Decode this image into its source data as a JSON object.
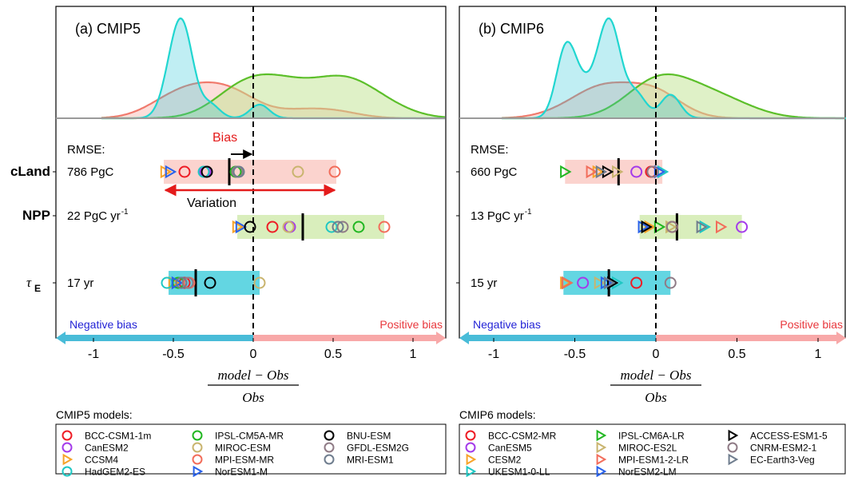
{
  "chart_data": [
    {
      "type": "scatter",
      "title": "(a) CMIP5",
      "xlim": [
        -1.25,
        1.2
      ],
      "xticks": [
        -1,
        -0.5,
        0,
        0.5,
        1
      ],
      "xtick_labels": [
        "-1",
        "-0.5",
        "0",
        "0.5",
        "1"
      ],
      "xlabel_numerator": "model − Obs",
      "xlabel_denominator": "Obs",
      "negative_label": "Negative bias",
      "positive_label": "Positive bias",
      "rmse_header": "RMSE:",
      "annotations": {
        "bias": "Bias",
        "variation": "Variation"
      },
      "variables": [
        {
          "name": "cLand",
          "rmse": "786 PgC",
          "range": [
            -0.56,
            0.52
          ],
          "mean": -0.15,
          "points": [
            {
              "model": "BCC-CSM1-1m",
              "value": -0.43
            },
            {
              "model": "CanESM2",
              "value": -0.3
            },
            {
              "model": "CCSM4",
              "value": -0.55
            },
            {
              "model": "HadGEM2-ES",
              "value": -0.31
            },
            {
              "model": "IPSL-CM5A-MR",
              "value": -0.11
            },
            {
              "model": "MIROC-ESM",
              "value": 0.28
            },
            {
              "model": "MPI-ESM-MR",
              "value": 0.51
            },
            {
              "model": "NorESM1-M",
              "value": -0.52
            },
            {
              "model": "BNU-ESM",
              "value": -0.29
            },
            {
              "model": "GFDL-ESM2G",
              "value": -0.1
            },
            {
              "model": "MRI-ESM1",
              "value": -0.09
            }
          ]
        },
        {
          "name": "NPP",
          "rmse": "22 PgC yr",
          "rmse_sup": "-1",
          "range": [
            -0.1,
            0.82
          ],
          "mean": 0.31,
          "points": [
            {
              "model": "BCC-CSM1-1m",
              "value": 0.12
            },
            {
              "model": "CanESM2",
              "value": 0.23
            },
            {
              "model": "CCSM4",
              "value": -0.1
            },
            {
              "model": "HadGEM2-ES",
              "value": 0.49
            },
            {
              "model": "IPSL-CM5A-MR",
              "value": 0.66
            },
            {
              "model": "MIROC-ESM",
              "value": 0.22
            },
            {
              "model": "MPI-ESM-MR",
              "value": 0.82
            },
            {
              "model": "NorESM1-M",
              "value": -0.08
            },
            {
              "model": "BNU-ESM",
              "value": -0.02
            },
            {
              "model": "GFDL-ESM2G",
              "value": 0.56
            },
            {
              "model": "MRI-ESM1",
              "value": 0.53
            }
          ]
        },
        {
          "name": "τE",
          "name_base": "τ",
          "name_sub": "E",
          "rmse": "17 yr",
          "range": [
            -0.53,
            0.04
          ],
          "mean": -0.36,
          "points": [
            {
              "model": "BCC-CSM1-1m",
              "value": -0.43
            },
            {
              "model": "CanESM2",
              "value": -0.45
            },
            {
              "model": "CCSM4",
              "value": -0.5
            },
            {
              "model": "HadGEM2-ES",
              "value": -0.54
            },
            {
              "model": "IPSL-CM5A-MR",
              "value": -0.47
            },
            {
              "model": "MIROC-ESM",
              "value": 0.04
            },
            {
              "model": "MPI-ESM-MR",
              "value": -0.4
            },
            {
              "model": "NorESM1-M",
              "value": -0.48
            },
            {
              "model": "BNU-ESM",
              "value": -0.27
            },
            {
              "model": "GFDL-ESM2G",
              "value": -0.41
            },
            {
              "model": "MRI-ESM1",
              "value": -0.45
            }
          ]
        }
      ],
      "legend_title": "CMIP5 models:",
      "legend": [
        {
          "model": "BCC-CSM1-1m",
          "marker": "circle",
          "color": "#ee1c25"
        },
        {
          "model": "CanESM2",
          "marker": "circle",
          "color": "#a43bea"
        },
        {
          "model": "CCSM4",
          "marker": "triangle",
          "color": "#f7a328"
        },
        {
          "model": "HadGEM2-ES",
          "marker": "circle",
          "color": "#1fc7c3"
        },
        {
          "model": "IPSL-CM5A-MR",
          "marker": "circle",
          "color": "#21b721"
        },
        {
          "model": "MIROC-ESM",
          "marker": "circle",
          "color": "#c9b46e"
        },
        {
          "model": "MPI-ESM-MR",
          "marker": "circle",
          "color": "#f26d5b"
        },
        {
          "model": "NorESM1-M",
          "marker": "triangle",
          "color": "#2961ea"
        },
        {
          "model": "BNU-ESM",
          "marker": "circle",
          "color": "#000000"
        },
        {
          "model": "GFDL-ESM2G",
          "marker": "circle",
          "color": "#8f7b86"
        },
        {
          "model": "MRI-ESM1",
          "marker": "circle",
          "color": "#6f7d8e"
        }
      ]
    },
    {
      "type": "scatter",
      "title": "(b) CMIP6",
      "xlim": [
        -1.25,
        1.2
      ],
      "xticks": [
        -1,
        -0.5,
        0,
        0.5,
        1
      ],
      "xtick_labels": [
        "-1",
        "-0.5",
        "0",
        "0.5",
        "1"
      ],
      "xlabel_numerator": "model − Obs",
      "xlabel_denominator": "Obs",
      "negative_label": "Negative bias",
      "positive_label": "Positive bias",
      "rmse_header": "RMSE:",
      "variables": [
        {
          "name": "cLand",
          "rmse": "660 PgC",
          "range": [
            -0.56,
            0.04
          ],
          "mean": -0.23,
          "points": [
            {
              "model": "BCC-CSM2-MR",
              "value": -0.03
            },
            {
              "model": "CanESM5",
              "value": -0.12
            },
            {
              "model": "CESM2",
              "value": -0.36
            },
            {
              "model": "UKESM1-0-LL",
              "value": 0.04
            },
            {
              "model": "IPSL-CM6A-LR",
              "value": -0.56
            },
            {
              "model": "MIROC-ES2L",
              "value": -0.24
            },
            {
              "model": "MPI-ESM1-2-LR",
              "value": -0.4
            },
            {
              "model": "NorESM2-LM",
              "value": 0.02
            },
            {
              "model": "ACCESS-ESM1-5",
              "value": -0.3
            },
            {
              "model": "CNRM-ESM2-1",
              "value": -0.02
            },
            {
              "model": "EC-Earth3-Veg",
              "value": -0.34
            }
          ]
        },
        {
          "name": "NPP",
          "rmse": "13 PgC yr",
          "rmse_sup": "-1",
          "range": [
            -0.1,
            0.53
          ],
          "mean": 0.13,
          "points": [
            {
              "model": "BCC-CSM2-MR",
              "value": 0.1
            },
            {
              "model": "CanESM5",
              "value": 0.53
            },
            {
              "model": "CESM2",
              "value": -0.04
            },
            {
              "model": "UKESM1-0-LL",
              "value": 0.3
            },
            {
              "model": "IPSL-CM6A-LR",
              "value": 0.02
            },
            {
              "model": "MIROC-ES2L",
              "value": 0.09
            },
            {
              "model": "MPI-ESM1-2-LR",
              "value": 0.4
            },
            {
              "model": "NorESM2-LM",
              "value": -0.08
            },
            {
              "model": "ACCESS-ESM1-5",
              "value": -0.06
            },
            {
              "model": "CNRM-ESM2-1",
              "value": 0.1
            },
            {
              "model": "EC-Earth3-Veg",
              "value": 0.28
            }
          ]
        },
        {
          "name": "τE",
          "name_base": "τ",
          "name_sub": "E",
          "rmse": "15 yr",
          "range": [
            -0.57,
            0.09
          ],
          "mean": -0.29,
          "points": [
            {
              "model": "BCC-CSM2-MR",
              "value": -0.12
            },
            {
              "model": "CanESM5",
              "value": -0.45
            },
            {
              "model": "CESM2",
              "value": -0.56
            },
            {
              "model": "UKESM1-0-LL",
              "value": -0.24
            },
            {
              "model": "IPSL-CM6A-LR",
              "value": -0.55
            },
            {
              "model": "MIROC-ES2L",
              "value": -0.35
            },
            {
              "model": "MPI-ESM1-2-LR",
              "value": -0.55
            },
            {
              "model": "NorESM2-LM",
              "value": -0.31
            },
            {
              "model": "ACCESS-ESM1-5",
              "value": -0.27
            },
            {
              "model": "CNRM-ESM2-1",
              "value": 0.09
            },
            {
              "model": "EC-Earth3-Veg",
              "value": -0.29
            }
          ]
        }
      ],
      "legend_title": "CMIP6 models:",
      "legend": [
        {
          "model": "BCC-CSM2-MR",
          "marker": "circle",
          "color": "#ee1c25"
        },
        {
          "model": "CanESM5",
          "marker": "circle",
          "color": "#a43bea"
        },
        {
          "model": "CESM2",
          "marker": "triangle",
          "color": "#f7a328"
        },
        {
          "model": "UKESM1-0-LL",
          "marker": "triangle",
          "color": "#1fc7c3"
        },
        {
          "model": "IPSL-CM6A-LR",
          "marker": "triangle",
          "color": "#21b721"
        },
        {
          "model": "MIROC-ES2L",
          "marker": "triangle",
          "color": "#c9b46e"
        },
        {
          "model": "MPI-ESM1-2-LR",
          "marker": "triangle",
          "color": "#f26d5b"
        },
        {
          "model": "NorESM2-LM",
          "marker": "triangle",
          "color": "#2961ea"
        },
        {
          "model": "ACCESS-ESM1-5",
          "marker": "triangle",
          "color": "#000000"
        },
        {
          "model": "CNRM-ESM2-1",
          "marker": "circle",
          "color": "#8f7b86"
        },
        {
          "model": "EC-Earth3-Veg",
          "marker": "triangle",
          "color": "#6f7d8e"
        }
      ]
    }
  ],
  "colors": {
    "cLand": "#f9b6ae",
    "NPP": "#bfe38f",
    "tauE": "#2fc8d8",
    "negative_arrow": "#49bcd8",
    "positive_arrow": "#f8a8a8",
    "negative_text": "#2424d6",
    "positive_text": "#e8383d",
    "bias_text": "#e41b1b",
    "arrow_red": "#e41b1b"
  }
}
